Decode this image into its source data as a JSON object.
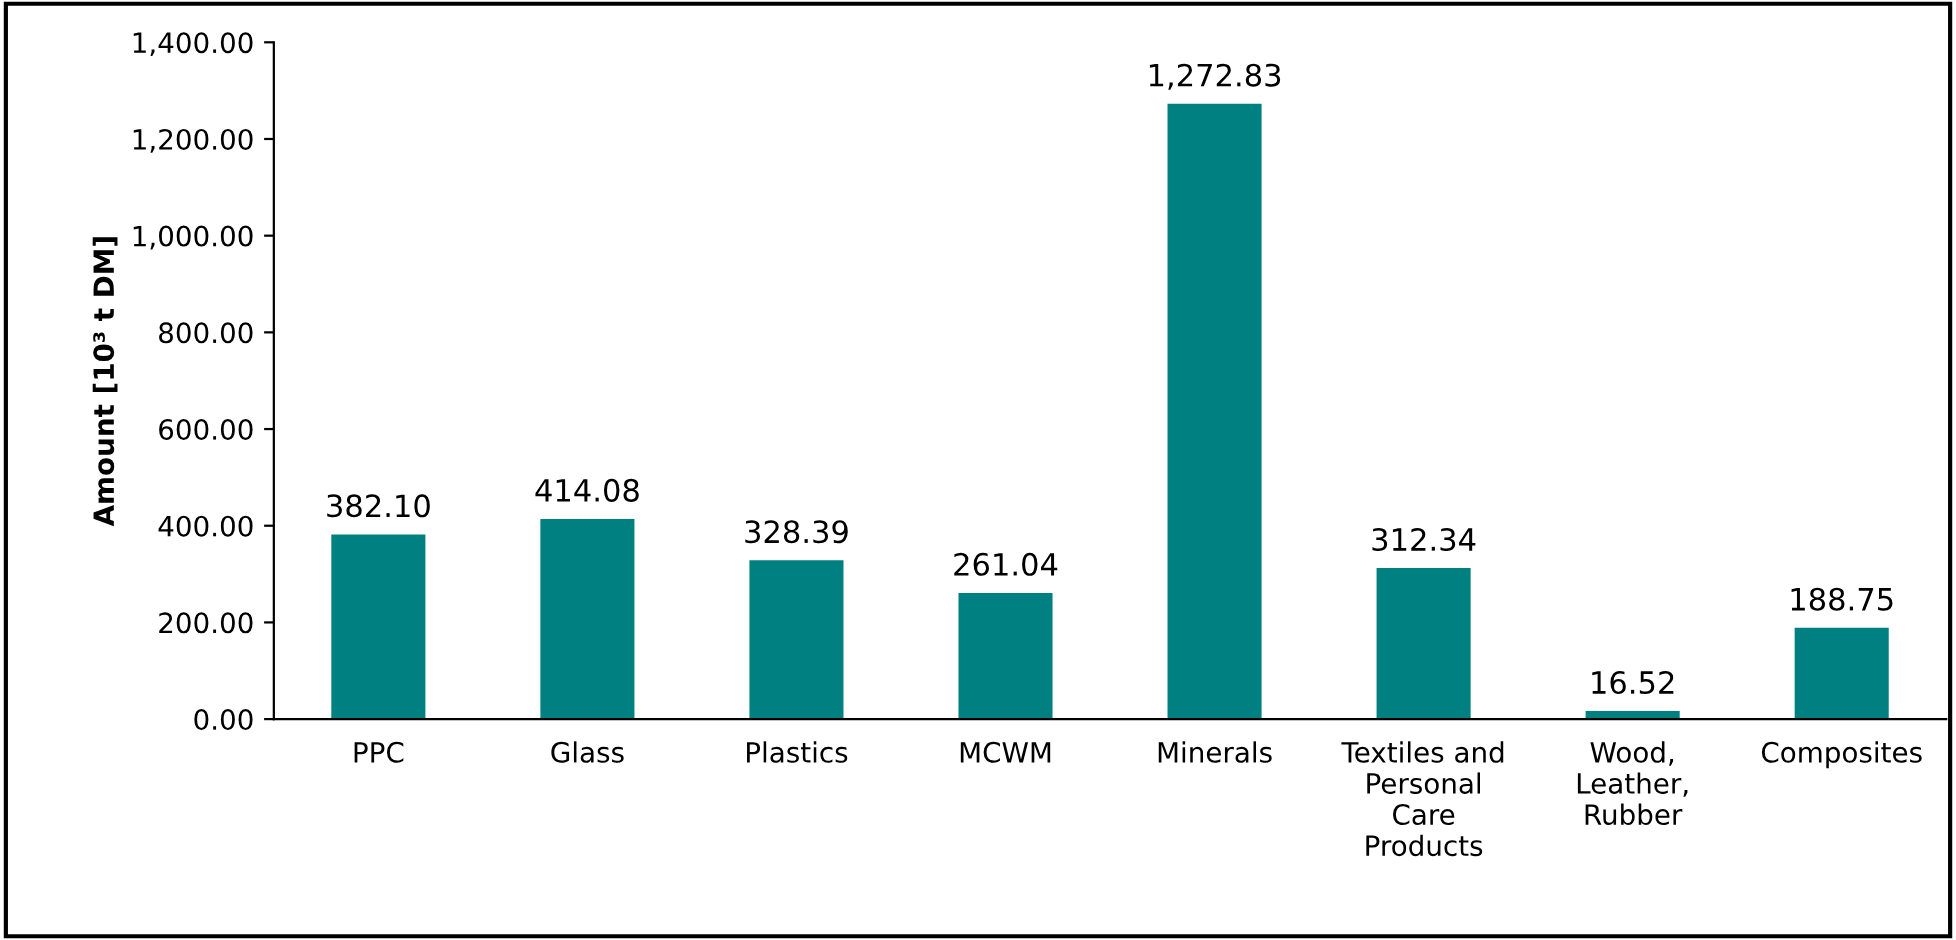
{
  "chart_data": {
    "type": "bar",
    "ylabel": "Amount [10³ t DM]",
    "categories": [
      "PPC",
      "Glass",
      "Plastics",
      "MCWM",
      "Minerals",
      "Textiles and\nPersonal\nCare\nProducts",
      "Wood,\nLeather,\nRubber",
      "Composites"
    ],
    "values": [
      382.1,
      414.08,
      328.39,
      261.04,
      1272.83,
      312.34,
      16.52,
      188.75
    ],
    "value_labels": [
      "382.10",
      "414.08",
      "328.39",
      "261.04",
      "1,272.83",
      "312.34",
      "16.52",
      "188.75"
    ],
    "color": "#008080",
    "ylim": [
      0,
      1400
    ],
    "yticks": [
      {
        "value": 0,
        "label": "0.00"
      },
      {
        "value": 200,
        "label": "200.00"
      },
      {
        "value": 400,
        "label": "400.00"
      },
      {
        "value": 600,
        "label": "600.00"
      },
      {
        "value": 800,
        "label": "800.00"
      },
      {
        "value": 1000,
        "label": "1,000.00"
      },
      {
        "value": 1200,
        "label": "1,200.00"
      },
      {
        "value": 1400,
        "label": "1,400.00"
      }
    ],
    "grid": false,
    "legend": false
  }
}
